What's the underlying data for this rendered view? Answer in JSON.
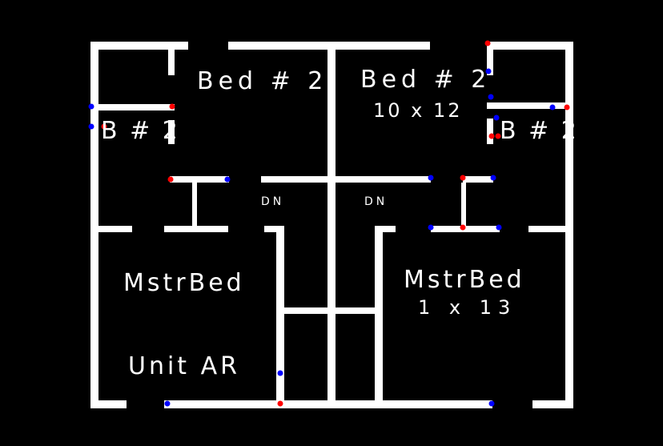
{
  "plan": {
    "wall_color": "#ffffff",
    "background_color": "#000000",
    "marker_colors": {
      "red": "#ff0000",
      "blue": "#0000ff"
    },
    "labels": {
      "bed2_left": "Bed # 2",
      "bed2_right": "Bed # 2",
      "bed2_right_size": "10 x 12",
      "b2_left": "B # 2",
      "b2_right": "B # 2",
      "dn_left": "DN",
      "dn_right": "DN",
      "mstr_left": "MstrBed",
      "mstr_right": "MstrBed",
      "mstr_right_size": "1 x 13",
      "unit": "Unit AR"
    }
  }
}
